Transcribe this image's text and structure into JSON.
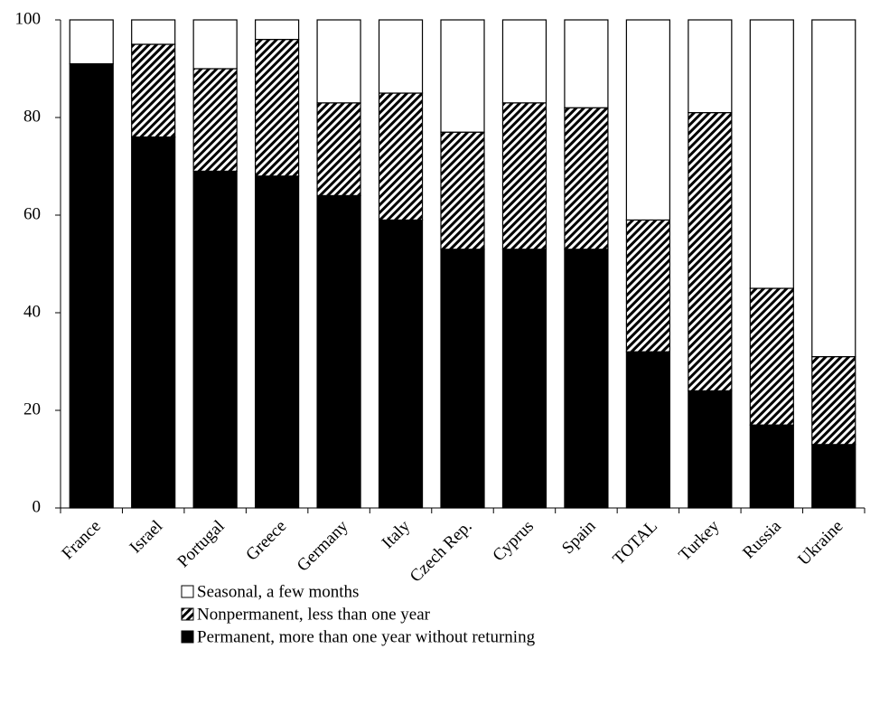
{
  "chart_data": {
    "type": "stacked_bar",
    "categories": [
      "France",
      "Israel",
      "Portugal",
      "Greece",
      "Germany",
      "Italy",
      "Czech Rep.",
      "Cyprus",
      "Spain",
      "TOTAL",
      "Turkey",
      "Russia",
      "Ukraine"
    ],
    "series": [
      {
        "name": "Permanent, more than one year without returning",
        "color": "#000000",
        "values": [
          91,
          76,
          69,
          68,
          64,
          59,
          53,
          53,
          53,
          32,
          24,
          17,
          13
        ]
      },
      {
        "name": "Nonpermanent, less than one year",
        "color": "#000000",
        "pattern": "hatch",
        "values": [
          0,
          19,
          21,
          28,
          19,
          26,
          24,
          30,
          29,
          27,
          57,
          28,
          18
        ]
      },
      {
        "name": "Seasonal, a few months",
        "color": "#ffffff",
        "values": [
          9,
          5,
          10,
          4,
          17,
          15,
          23,
          17,
          18,
          41,
          19,
          55,
          69
        ]
      }
    ],
    "ylim": [
      0,
      100
    ],
    "yticks": [
      0,
      20,
      40,
      60,
      80,
      100
    ],
    "grid": false
  }
}
